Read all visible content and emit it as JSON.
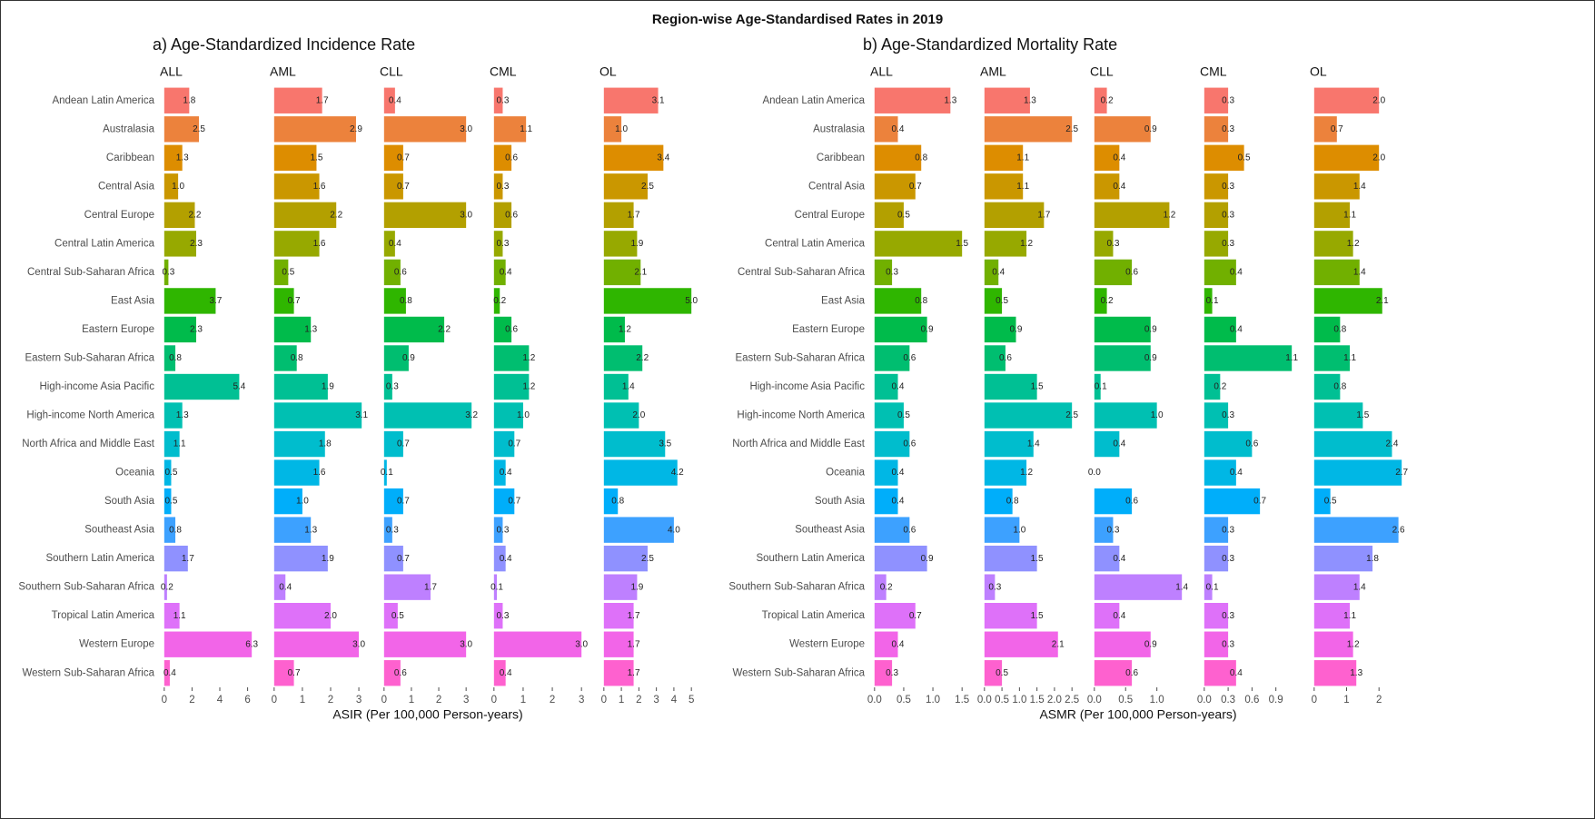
{
  "title": "Region-wise Age-Standardised Rates in 2019",
  "chart_data": [
    {
      "type": "bar",
      "title": "a) Age-Standardized Incidence Rate",
      "xlabel": "ASIR (Per 100,000 Person-years)",
      "categories": [
        "Andean Latin America",
        "Australasia",
        "Caribbean",
        "Central Asia",
        "Central Europe",
        "Central Latin America",
        "Central Sub-Saharan Africa",
        "East Asia",
        "Eastern Europe",
        "Eastern Sub-Saharan Africa",
        "High-income Asia Pacific",
        "High-income North America",
        "North Africa and Middle East",
        "Oceania",
        "South Asia",
        "Southeast Asia",
        "Southern Latin America",
        "Southern Sub-Saharan Africa",
        "Tropical Latin America",
        "Western Europe",
        "Western Sub-Saharan Africa"
      ],
      "colors": [
        "#F8766D",
        "#EC823C",
        "#DD8D00",
        "#CA9700",
        "#B3A000",
        "#97A900",
        "#71B000",
        "#2FB600",
        "#00BB4B",
        "#00BE70",
        "#00C094",
        "#00C0B2",
        "#00BDCD",
        "#00B7E5",
        "#00AEFA",
        "#3DA1FF",
        "#8F91FF",
        "#BE80FF",
        "#DE71F9",
        "#F265E8",
        "#FE61CF"
      ],
      "series": [
        {
          "name": "ALL",
          "values": [
            1.8,
            2.5,
            1.3,
            1.0,
            2.2,
            2.3,
            0.3,
            3.7,
            2.3,
            0.8,
            5.4,
            1.3,
            1.1,
            0.5,
            0.5,
            0.8,
            1.7,
            0.2,
            1.1,
            6.3,
            0.4
          ],
          "value_labels": [
            "1.8",
            "2.5",
            "1.3",
            "1.0",
            "2.2",
            "2.3",
            "0.3",
            "3.7",
            "2.3",
            "0.8",
            "5.4",
            "1.3",
            "1.1",
            "0.5",
            "0.5",
            "0.8",
            "1.7",
            "0.2",
            "1.1",
            "6.3",
            "0.4"
          ],
          "xlim": [
            -0.315,
            6.615
          ],
          "xticks": [
            0,
            2,
            4,
            6
          ]
        },
        {
          "name": "AML",
          "values": [
            1.7,
            2.9,
            1.5,
            1.6,
            2.2,
            1.6,
            0.5,
            0.7,
            1.3,
            0.8,
            1.9,
            3.1,
            1.8,
            1.6,
            1.0,
            1.3,
            1.9,
            0.4,
            2.0,
            3.0,
            0.7
          ],
          "value_labels": [
            "1.7",
            "2.9",
            "1.5",
            "1.6",
            "2.2",
            "1.6",
            "0.5",
            "0.7",
            "1.3",
            "0.8",
            "1.9",
            "3.1",
            "1.8",
            "1.6",
            "1.0",
            "1.3",
            "1.9",
            "0.4",
            "2.0",
            "3.0",
            "0.7"
          ],
          "xlim": [
            -0.155,
            3.255
          ],
          "xticks": [
            0,
            1,
            2,
            3
          ]
        },
        {
          "name": "CLL",
          "values": [
            0.4,
            3.0,
            0.7,
            0.7,
            3.0,
            0.4,
            0.6,
            0.8,
            2.2,
            0.9,
            0.3,
            3.2,
            0.7,
            0.1,
            0.7,
            0.3,
            0.7,
            1.7,
            0.5,
            3.0,
            0.6
          ],
          "value_labels": [
            "0.4",
            "3.0",
            "0.7",
            "0.7",
            "3.0",
            "0.4",
            "0.6",
            "0.8",
            "2.2",
            "0.9",
            "0.3",
            "3.2",
            "0.7",
            "0.1",
            "0.7",
            "0.3",
            "0.7",
            "1.7",
            "0.5",
            "3.0",
            "0.6"
          ],
          "xlim": [
            -0.16,
            3.36
          ],
          "xticks": [
            0,
            1,
            2,
            3
          ]
        },
        {
          "name": "CML",
          "values": [
            0.3,
            1.1,
            0.6,
            0.3,
            0.6,
            0.3,
            0.4,
            0.2,
            0.6,
            1.2,
            1.2,
            1.0,
            0.7,
            0.4,
            0.7,
            0.3,
            0.4,
            0.1,
            0.3,
            3.0,
            0.4
          ],
          "value_labels": [
            "0.3",
            "1.1",
            "0.6",
            "0.3",
            "0.6",
            "0.3",
            "0.4",
            "0.2",
            "0.6",
            "1.2",
            "1.2",
            "1.0",
            "0.7",
            "0.4",
            "0.7",
            "0.3",
            "0.4",
            "0.1",
            "0.3",
            "3.0",
            "0.4"
          ],
          "xlim": [
            -0.15,
            3.15
          ],
          "xticks": [
            0,
            1,
            2,
            3
          ]
        },
        {
          "name": "OL",
          "values": [
            3.1,
            1.0,
            3.4,
            2.5,
            1.7,
            1.9,
            2.1,
            5.0,
            1.2,
            2.2,
            1.4,
            2.0,
            3.5,
            4.2,
            0.8,
            4.0,
            2.5,
            1.9,
            1.7,
            1.7,
            1.7
          ],
          "value_labels": [
            "3.1",
            "1.0",
            "3.4",
            "2.5",
            "1.7",
            "1.9",
            "2.1",
            "5.0",
            "1.2",
            "2.2",
            "1.4",
            "2.0",
            "3.5",
            "4.2",
            "0.8",
            "4.0",
            "2.5",
            "1.9",
            "1.7",
            "1.7",
            "1.7"
          ],
          "xlim": [
            -0.25,
            5.25
          ],
          "xticks": [
            0,
            1,
            2,
            3,
            4,
            5
          ]
        }
      ]
    },
    {
      "type": "bar",
      "title": "b) Age-Standardized Mortality Rate",
      "xlabel": "ASMR (Per 100,000 Person-years)",
      "categories": [
        "Andean Latin America",
        "Australasia",
        "Caribbean",
        "Central Asia",
        "Central Europe",
        "Central Latin America",
        "Central Sub-Saharan Africa",
        "East Asia",
        "Eastern Europe",
        "Eastern Sub-Saharan Africa",
        "High-income Asia Pacific",
        "High-income North America",
        "North Africa and Middle East",
        "Oceania",
        "South Asia",
        "Southeast Asia",
        "Southern Latin America",
        "Southern Sub-Saharan Africa",
        "Tropical Latin America",
        "Western Europe",
        "Western Sub-Saharan Africa"
      ],
      "colors": [
        "#F8766D",
        "#EC823C",
        "#DD8D00",
        "#CA9700",
        "#B3A000",
        "#97A900",
        "#71B000",
        "#2FB600",
        "#00BB4B",
        "#00BE70",
        "#00C094",
        "#00C0B2",
        "#00BDCD",
        "#00B7E5",
        "#00AEFA",
        "#3DA1FF",
        "#8F91FF",
        "#BE80FF",
        "#DE71F9",
        "#F265E8",
        "#FE61CF"
      ],
      "series": [
        {
          "name": "ALL",
          "values": [
            1.3,
            0.4,
            0.8,
            0.7,
            0.5,
            1.5,
            0.3,
            0.8,
            0.9,
            0.6,
            0.4,
            0.5,
            0.6,
            0.4,
            0.4,
            0.6,
            0.9,
            0.2,
            0.7,
            0.4,
            0.3
          ],
          "value_labels": [
            "1.3",
            "0.4",
            "0.8",
            "0.7",
            "0.5",
            "1.5",
            "0.3",
            "0.8",
            "0.9",
            "0.6",
            "0.4",
            "0.5",
            "0.6",
            "0.4",
            "0.4",
            "0.6",
            "0.9",
            "0.2",
            "0.7",
            "0.4",
            "0.3"
          ],
          "xlim": [
            -0.075,
            1.575
          ],
          "xticks": [
            {
              "value": 0,
              "label": "0.0"
            },
            0.5,
            {
              "value": 1,
              "label": "1.0"
            },
            1.5
          ]
        },
        {
          "name": "AML",
          "values": [
            1.3,
            2.5,
            1.1,
            1.1,
            1.7,
            1.2,
            0.4,
            0.5,
            0.9,
            0.6,
            1.5,
            2.5,
            1.4,
            1.2,
            0.8,
            1.0,
            1.5,
            0.3,
            1.5,
            2.1,
            0.5
          ],
          "value_labels": [
            "1.3",
            "2.5",
            "1.1",
            "1.1",
            "1.7",
            "1.2",
            "0.4",
            "0.5",
            "0.9",
            "0.6",
            "1.5",
            "2.5",
            "1.4",
            "1.2",
            "0.8",
            "1.0",
            "1.5",
            "0.3",
            "1.5",
            "2.1",
            "0.5"
          ],
          "xlim": [
            -0.125,
            2.625
          ],
          "xticks": [
            {
              "value": 0,
              "label": "0.0"
            },
            0.5,
            {
              "value": 1,
              "label": "1.0"
            },
            1.5,
            {
              "value": 2,
              "label": "2.0"
            },
            2.5
          ]
        },
        {
          "name": "CLL",
          "values": [
            0.2,
            0.9,
            0.4,
            0.4,
            1.2,
            0.3,
            0.6,
            0.2,
            0.9,
            0.9,
            0.1,
            1.0,
            0.4,
            0.0,
            0.6,
            0.3,
            0.4,
            1.4,
            0.4,
            0.9,
            0.6
          ],
          "value_labels": [
            "0.2",
            "0.9",
            "0.4",
            "0.4",
            "1.2",
            "0.3",
            "0.6",
            "0.2",
            "0.9",
            "0.9",
            "0.1",
            "1.0",
            "0.4",
            "0.0",
            "0.6",
            "0.3",
            "0.4",
            "1.4",
            "0.4",
            "0.9",
            "0.6"
          ],
          "xlim": [
            -0.07,
            1.47
          ],
          "xticks": [
            {
              "value": 0,
              "label": "0.0"
            },
            0.5,
            {
              "value": 1,
              "label": "1.0"
            }
          ]
        },
        {
          "name": "CML",
          "values": [
            0.3,
            0.3,
            0.5,
            0.3,
            0.3,
            0.3,
            0.4,
            0.1,
            0.4,
            1.1,
            0.2,
            0.3,
            0.6,
            0.4,
            0.7,
            0.3,
            0.3,
            0.1,
            0.3,
            0.3,
            0.4
          ],
          "value_labels": [
            "0.3",
            "0.3",
            "0.5",
            "0.3",
            "0.3",
            "0.3",
            "0.4",
            "0.1",
            "0.4",
            "1.1",
            "0.2",
            "0.3",
            "0.6",
            "0.4",
            "0.7",
            "0.3",
            "0.3",
            "0.1",
            "0.3",
            "0.3",
            "0.4"
          ],
          "xlim": [
            -0.055,
            1.155
          ],
          "xticks": [
            {
              "value": 0,
              "label": "0.0"
            },
            0.3,
            0.6,
            0.9
          ]
        },
        {
          "name": "OL",
          "values": [
            2.0,
            0.7,
            2.0,
            1.4,
            1.1,
            1.2,
            1.4,
            2.1,
            0.8,
            1.1,
            0.8,
            1.5,
            2.4,
            2.7,
            0.5,
            2.6,
            1.8,
            1.4,
            1.1,
            1.2,
            1.3
          ],
          "value_labels": [
            "2.0",
            "0.7",
            "2.0",
            "1.4",
            "1.1",
            "1.2",
            "1.4",
            "2.1",
            "0.8",
            "1.1",
            "0.8",
            "1.5",
            "2.4",
            "2.7",
            "0.5",
            "2.6",
            "1.8",
            "1.4",
            "1.1",
            "1.2",
            "1.3"
          ],
          "xlim": [
            -0.135,
            2.835
          ],
          "xticks": [
            0,
            1,
            2
          ]
        }
      ]
    }
  ]
}
